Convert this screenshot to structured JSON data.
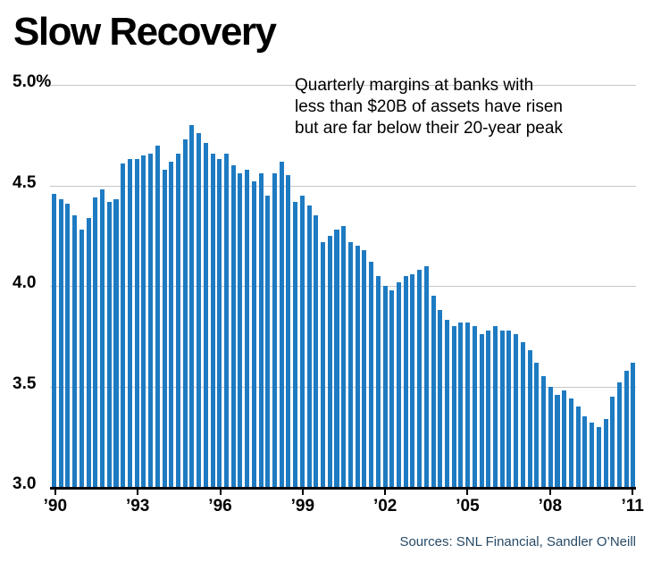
{
  "chart_data": {
    "type": "bar",
    "title": "Slow Recovery",
    "annotation": [
      "Quarterly margins at banks with",
      "less than $20B of assets have risen",
      "but are far below their 20-year peak"
    ],
    "unit": "%",
    "ylim": [
      3.0,
      5.0
    ],
    "grid": true,
    "y_ticks": [
      {
        "value": 5.0,
        "label": "5.0%"
      },
      {
        "value": 4.5,
        "label": "4.5"
      },
      {
        "value": 4.0,
        "label": "4.0"
      },
      {
        "value": 3.5,
        "label": "3.5"
      },
      {
        "value": 3.0,
        "label": "3.0"
      }
    ],
    "x_period": {
      "start": "1990 Q1",
      "end": "2011 Q1",
      "frequency": "quarterly"
    },
    "x_tick_labels": [
      {
        "index": 0,
        "label": "’90"
      },
      {
        "index": 12,
        "label": "’93"
      },
      {
        "index": 24,
        "label": "’96"
      },
      {
        "index": 36,
        "label": "’99"
      },
      {
        "index": 48,
        "label": "’02"
      },
      {
        "index": 60,
        "label": "’05"
      },
      {
        "index": 72,
        "label": "’08"
      },
      {
        "index": 84,
        "label": "’11"
      }
    ],
    "values": [
      4.46,
      4.43,
      4.41,
      4.35,
      4.28,
      4.34,
      4.44,
      4.48,
      4.42,
      4.43,
      4.61,
      4.63,
      4.63,
      4.65,
      4.66,
      4.7,
      4.58,
      4.62,
      4.66,
      4.73,
      4.8,
      4.76,
      4.71,
      4.66,
      4.63,
      4.66,
      4.6,
      4.56,
      4.58,
      4.52,
      4.56,
      4.45,
      4.56,
      4.62,
      4.55,
      4.42,
      4.45,
      4.4,
      4.35,
      4.22,
      4.25,
      4.28,
      4.3,
      4.22,
      4.2,
      4.18,
      4.12,
      4.05,
      4.0,
      3.98,
      4.02,
      4.05,
      4.06,
      4.08,
      4.1,
      3.95,
      3.88,
      3.83,
      3.8,
      3.82,
      3.82,
      3.8,
      3.76,
      3.78,
      3.8,
      3.78,
      3.78,
      3.76,
      3.72,
      3.68,
      3.62,
      3.55,
      3.5,
      3.46,
      3.48,
      3.44,
      3.4,
      3.35,
      3.32,
      3.3,
      3.34,
      3.45,
      3.52,
      3.58,
      3.62
    ],
    "source": "Sources: SNL Financial, Sandler O’Neill",
    "bar_color": "#1e7bc2",
    "grid_color": "#c6c6c6",
    "axis_color": "#000000",
    "source_color": "#274a67"
  }
}
